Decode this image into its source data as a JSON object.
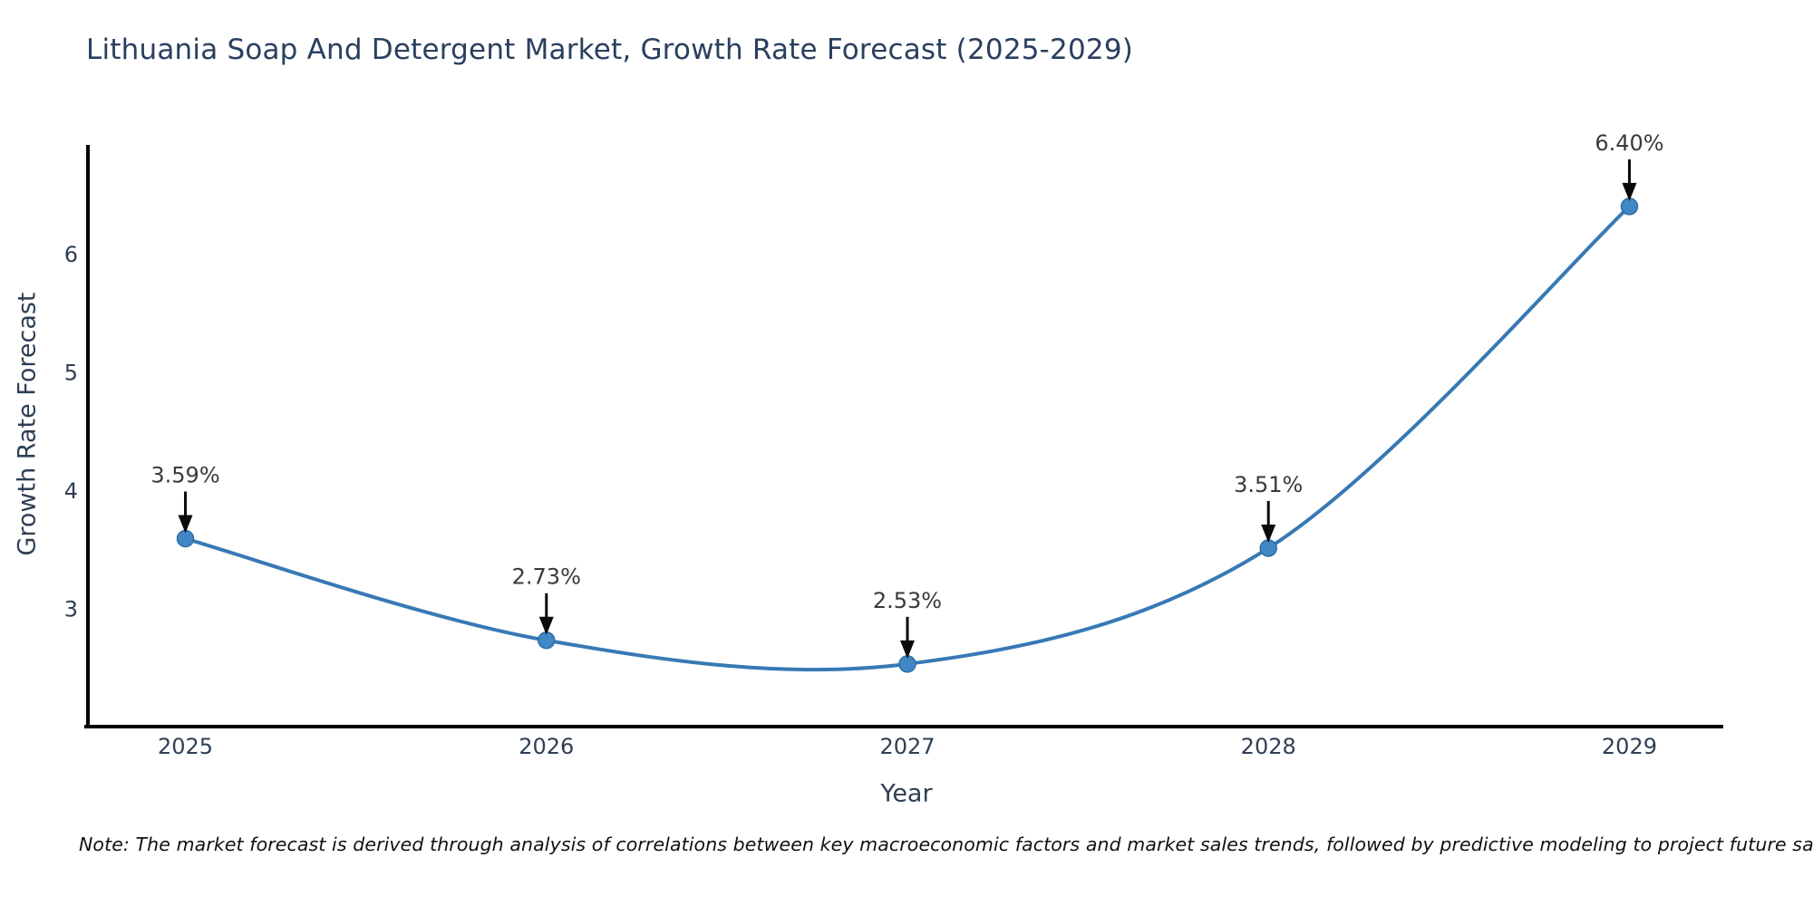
{
  "chart_data": {
    "type": "line",
    "title": "Lithuania Soap And Detergent Market, Growth Rate Forecast (2025-2029)",
    "xlabel": "Year",
    "ylabel": "Growth Rate Forecast",
    "categories": [
      2025,
      2026,
      2027,
      2028,
      2029
    ],
    "series": [
      {
        "name": "Growth Rate Forecast",
        "values": [
          3.59,
          2.73,
          2.53,
          3.51,
          6.4
        ],
        "point_labels": [
          "3.59%",
          "2.73%",
          "2.53%",
          "3.51%",
          "6.40%"
        ]
      }
    ],
    "x_tick_labels": [
      "2025",
      "2026",
      "2027",
      "2028",
      "2029"
    ],
    "y_tick_labels": [
      "3",
      "4",
      "5",
      "6"
    ],
    "y_ticks": [
      3,
      4,
      5,
      6
    ],
    "xlim": [
      2024.73,
      2029.26
    ],
    "ylim": [
      2.0,
      6.92
    ],
    "grid": false,
    "legend_position": "none",
    "line_style": "smooth-spline",
    "annotation_arrow": "down-arrow-to-point",
    "note": "Note: The market forecast is derived through analysis of correlations between key macroeconomic factors and market sales trends, followed by predictive modeling to project future sales.",
    "colors": {
      "line": "#3879b5",
      "marker_fill": "#4287c5",
      "marker_edge": "#2e6ea6",
      "axis_line": "#000000",
      "arrow": "#0a0a0a",
      "title_text": "#2a3f5f",
      "tick_text": "#2e3f54",
      "annotation_text": "#3a3a3a",
      "note_text": "#111111",
      "background": "#ffffff"
    }
  }
}
